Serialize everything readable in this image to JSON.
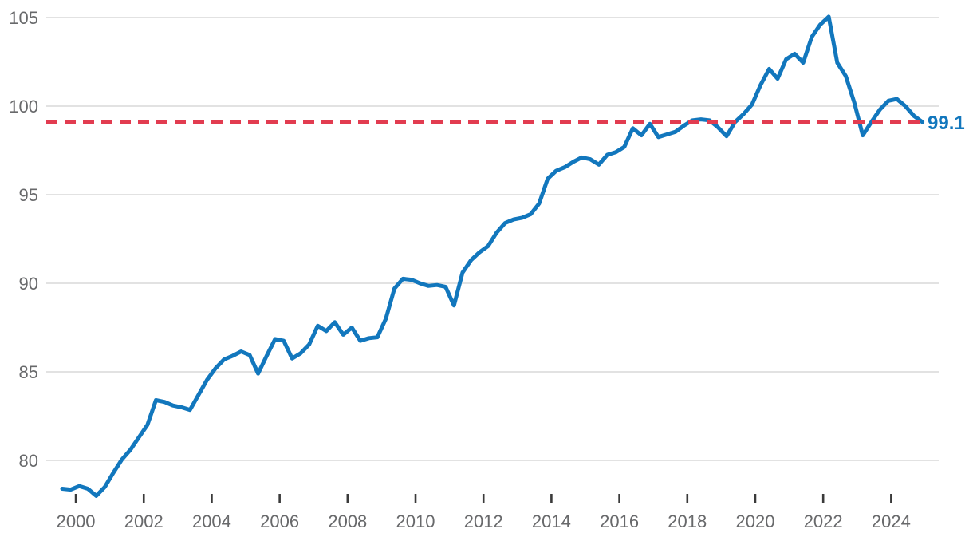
{
  "chart_data": {
    "type": "line",
    "title": "",
    "xlabel": "",
    "ylabel": "",
    "x_start": 1999.6,
    "x_step": 0.2507,
    "xlim": [
      1999.13,
      2025.4
    ],
    "ylim": [
      78,
      105
    ],
    "grid": "horizontal",
    "legend_position": "none",
    "y_ticks": [
      80,
      85,
      90,
      95,
      100,
      105
    ],
    "x_ticks": [
      2000,
      2002,
      2004,
      2006,
      2008,
      2010,
      2012,
      2014,
      2016,
      2018,
      2020,
      2022,
      2024
    ],
    "series": [
      {
        "name": "index-line",
        "color": "#1277bd",
        "values": [
          78.4,
          78.35,
          78.55,
          78.4,
          78.0,
          78.5,
          79.3,
          80.05,
          80.6,
          81.3,
          82.0,
          83.4,
          83.3,
          83.1,
          83.0,
          82.85,
          83.7,
          84.55,
          85.2,
          85.7,
          85.9,
          86.15,
          85.95,
          84.9,
          85.9,
          86.85,
          86.75,
          85.75,
          86.05,
          86.55,
          87.6,
          87.3,
          87.8,
          87.1,
          87.5,
          86.75,
          86.9,
          86.95,
          88.0,
          89.7,
          90.25,
          90.2,
          90.0,
          89.85,
          89.9,
          89.8,
          88.75,
          90.6,
          91.3,
          91.75,
          92.1,
          92.85,
          93.4,
          93.6,
          93.7,
          93.9,
          94.5,
          95.9,
          96.35,
          96.55,
          96.85,
          97.1,
          97.0,
          96.7,
          97.25,
          97.4,
          97.7,
          98.75,
          98.35,
          99.0,
          98.25,
          98.4,
          98.55,
          98.9,
          99.2,
          99.25,
          99.2,
          98.8,
          98.3,
          99.1,
          99.55,
          100.1,
          101.2,
          102.1,
          101.55,
          102.65,
          102.95,
          102.45,
          103.9,
          104.6,
          105.05,
          102.45,
          101.7,
          100.2,
          98.35,
          99.1,
          99.8,
          100.3,
          100.4,
          100.0,
          99.45,
          99.1
        ]
      }
    ],
    "reference_line": {
      "value": 99.1,
      "label": "99.1",
      "color": "#e23c50",
      "style": "dashed"
    },
    "colors": {
      "background": "#ffffff",
      "line": "#1277bd",
      "reference": "#e23c50",
      "gridline": "#d9d9d9",
      "axis_tick_mark": "#3a3a3a",
      "axis_tick_label": "#68696b",
      "reference_label": "#1277bd"
    }
  }
}
